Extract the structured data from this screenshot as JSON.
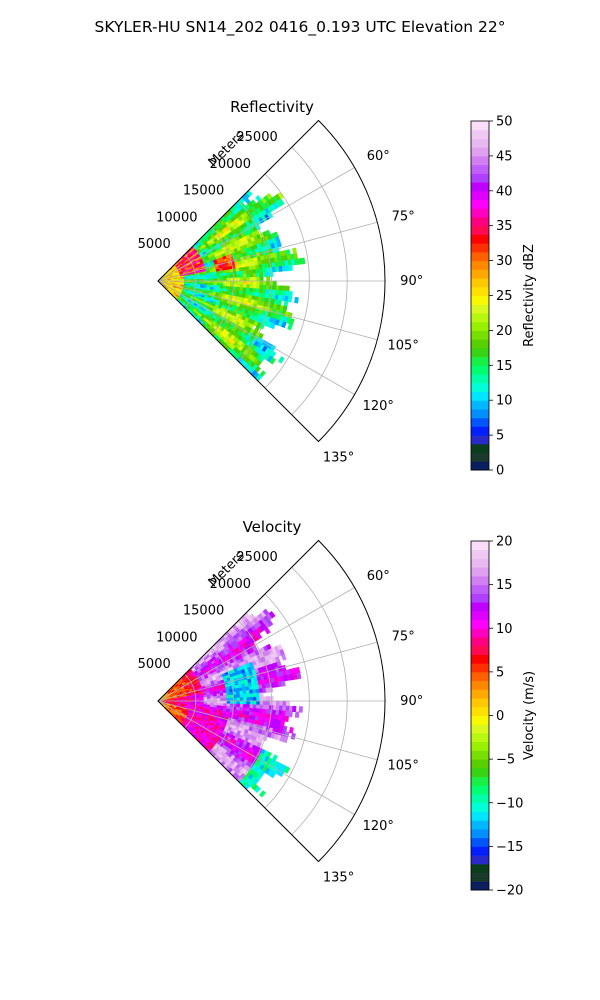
{
  "figure": {
    "suptitle": "SKYLER-HU  SN14_202  0416_0.193 UTC Elevation 22°"
  },
  "chart_data": [
    {
      "type": "heatmap",
      "projection": "polar-sector",
      "title": "Reflectivity",
      "r_label": "Meters",
      "r_ticks": [
        5000,
        10000,
        15000,
        20000,
        25000
      ],
      "r_tick_labels": [
        "5000",
        "10000",
        "15000",
        "20000",
        "25000"
      ],
      "r_max": 30000,
      "theta_range_deg": [
        45,
        135
      ],
      "theta_ticks": [
        60,
        75,
        90,
        105,
        120,
        135
      ],
      "theta_tick_labels": [
        "60°",
        "75°",
        "90°",
        "105°",
        "120°",
        "135°"
      ],
      "grid": true,
      "data_extent_r": [
        0,
        20000
      ],
      "colorbar": {
        "label": "Reflectivity dBZ",
        "vmin": 0,
        "vmax": 50,
        "ticks": [
          0,
          5,
          10,
          15,
          20,
          25,
          30,
          35,
          40,
          45,
          50
        ],
        "tick_labels": [
          "0",
          "5",
          "10",
          "15",
          "20",
          "25",
          "30",
          "35",
          "40",
          "45",
          "50"
        ],
        "colors": [
          "#0b1f5e",
          "#1a3a2e",
          "#0a3d1c",
          "#2a2ac8",
          "#0020ff",
          "#0055ff",
          "#0090ff",
          "#00b8ff",
          "#00e6ff",
          "#00ffd8",
          "#00ffa8",
          "#00ff70",
          "#18f046",
          "#38d414",
          "#58d000",
          "#78e000",
          "#98f000",
          "#b8f810",
          "#d8f820",
          "#f8f800",
          "#ffe000",
          "#ffc800",
          "#ffa800",
          "#ff8800",
          "#ff6000",
          "#ff3000",
          "#ff0000",
          "#ff0a50",
          "#ff0080",
          "#ff00c0",
          "#ff00ff",
          "#e000ff",
          "#c000ff",
          "#b040ff",
          "#c060f8",
          "#d080f0",
          "#e0a0f0",
          "#e8b8f0",
          "#f0c8f4",
          "#f8dcf8"
        ]
      },
      "field_samples": [
        {
          "range_m": 1500,
          "value_dbz": 28
        },
        {
          "range_m": 4000,
          "value_dbz": 34
        },
        {
          "range_m": 8000,
          "value_dbz": 20
        },
        {
          "range_m": 14000,
          "value_dbz": 18
        },
        {
          "range_m": 19000,
          "value_dbz": 16
        }
      ]
    },
    {
      "type": "heatmap",
      "projection": "polar-sector",
      "title": "Velocity",
      "r_label": "Meters",
      "r_ticks": [
        5000,
        10000,
        15000,
        20000,
        25000
      ],
      "r_tick_labels": [
        "5000",
        "10000",
        "15000",
        "20000",
        "25000"
      ],
      "r_max": 30000,
      "theta_range_deg": [
        45,
        135
      ],
      "theta_ticks": [
        60,
        75,
        90,
        105,
        120,
        135
      ],
      "theta_tick_labels": [
        "60°",
        "75°",
        "90°",
        "105°",
        "120°",
        "135°"
      ],
      "grid": true,
      "data_extent_r": [
        0,
        20000
      ],
      "colorbar": {
        "label": "Velocity (m/s)",
        "vmin": -20,
        "vmax": 20,
        "ticks": [
          -20,
          -15,
          -10,
          -5,
          0,
          5,
          10,
          15,
          20
        ],
        "tick_labels": [
          "−20",
          "−15",
          "−10",
          "−5",
          "0",
          "5",
          "10",
          "15",
          "20"
        ],
        "colors": [
          "#0b1f5e",
          "#1a3a2e",
          "#0a3d1c",
          "#2a2ac8",
          "#0020ff",
          "#0055ff",
          "#0090ff",
          "#00b8ff",
          "#00e6ff",
          "#00ffd8",
          "#00ffa8",
          "#00ff70",
          "#18f046",
          "#38d414",
          "#58d000",
          "#78e000",
          "#98f000",
          "#b8f810",
          "#d8f820",
          "#f8f800",
          "#ffe000",
          "#ffc800",
          "#ffa800",
          "#ff8800",
          "#ff6000",
          "#ff3000",
          "#ff0000",
          "#ff0a50",
          "#ff0080",
          "#ff00c0",
          "#ff00ff",
          "#e000ff",
          "#c000ff",
          "#b040ff",
          "#c060f8",
          "#d080f0",
          "#e0a0f0",
          "#e8b8f0",
          "#f0c8f4",
          "#f8dcf8"
        ]
      },
      "field_samples": [
        {
          "range_m": 2000,
          "value_ms": 2
        },
        {
          "range_m": 6000,
          "value_ms": 10
        },
        {
          "range_m": 11000,
          "value_ms": 14
        },
        {
          "range_m": 14000,
          "value_ms": -12
        },
        {
          "range_m": 19000,
          "value_ms": -10
        }
      ]
    }
  ]
}
